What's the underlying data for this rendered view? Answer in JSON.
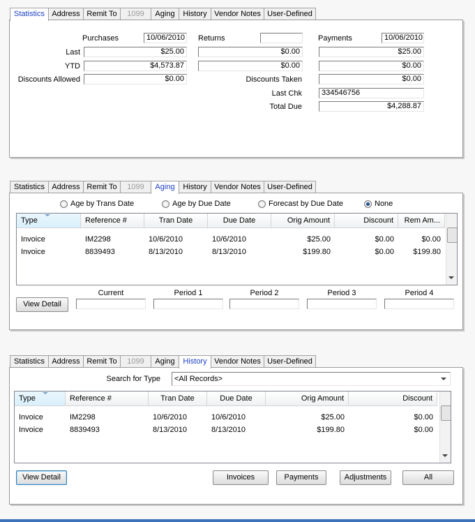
{
  "statistics": {
    "tabs": [
      "Statistics",
      "Address",
      "Remit To",
      "1099",
      "Aging",
      "History",
      "Vendor Notes",
      "User-Defined"
    ],
    "active_tab": 0,
    "disabled_tab": 3,
    "purchases": {
      "label": "Purchases",
      "date": "10/06/2010"
    },
    "returns": {
      "label": "Returns"
    },
    "payments": {
      "label": "Payments",
      "date": "10/06/2010"
    },
    "rows": [
      {
        "label": "Last",
        "purchases": "$25.00",
        "returns": "$0.00",
        "payments": "$25.00"
      },
      {
        "label": "YTD",
        "purchases": "$4,573.87",
        "returns": "$0.00",
        "payments": "$0.00"
      }
    ],
    "discounts_allowed": {
      "label": "Discounts Allowed",
      "value": "$0.00"
    },
    "discounts_taken": {
      "label": "Discounts Taken",
      "value": "$0.00"
    },
    "last_chk": {
      "label": "Last Chk",
      "value": "334546756"
    },
    "total_due": {
      "label": "Total Due",
      "value": "$4,288.87"
    }
  },
  "aging": {
    "tabs": [
      "Statistics",
      "Address",
      "Remit To",
      "1099",
      "Aging",
      "History",
      "Vendor Notes",
      "User-Defined"
    ],
    "active_tab": 4,
    "disabled_tab": 3,
    "options": [
      "Age by Trans Date",
      "Age by Due Date",
      "Forecast by Due Date",
      "None"
    ],
    "selected_option": 3,
    "table": {
      "columns": [
        "Type",
        "Reference #",
        "Tran Date",
        "Due Date",
        "Orig Amount",
        "Discount",
        "Rem Am..."
      ],
      "rows": [
        [
          "Invoice",
          "IM2298",
          "10/6/2010",
          "10/6/2010",
          "$25.00",
          "$0.00",
          "$0.00"
        ],
        [
          "Invoice",
          "8839493",
          "8/13/2010",
          "8/13/2010",
          "$199.80",
          "$0.00",
          "$199.80"
        ]
      ]
    },
    "view_detail": "View Detail",
    "periods": [
      "Current",
      "Period 1",
      "Period 2",
      "Period 3",
      "Period 4"
    ]
  },
  "history": {
    "tabs": [
      "Statistics",
      "Address",
      "Remit To",
      "1099",
      "Aging",
      "History",
      "Vendor Notes",
      "User-Defined"
    ],
    "active_tab": 5,
    "disabled_tab": 3,
    "search_label": "Search for Type",
    "search_value": "<All Records>",
    "table": {
      "columns": [
        "Type",
        "Reference #",
        "Tran Date",
        "Due Date",
        "Orig Amount",
        "Discount"
      ],
      "rows": [
        [
          "Invoice",
          "IM2298",
          "10/6/2010",
          "10/6/2010",
          "$25.00",
          "$0.00"
        ],
        [
          "Invoice",
          "8839493",
          "8/13/2010",
          "8/13/2010",
          "$199.80",
          "$0.00"
        ]
      ]
    },
    "buttons": [
      "View Detail",
      "Invoices",
      "Payments",
      "Adjustments",
      "All"
    ]
  }
}
